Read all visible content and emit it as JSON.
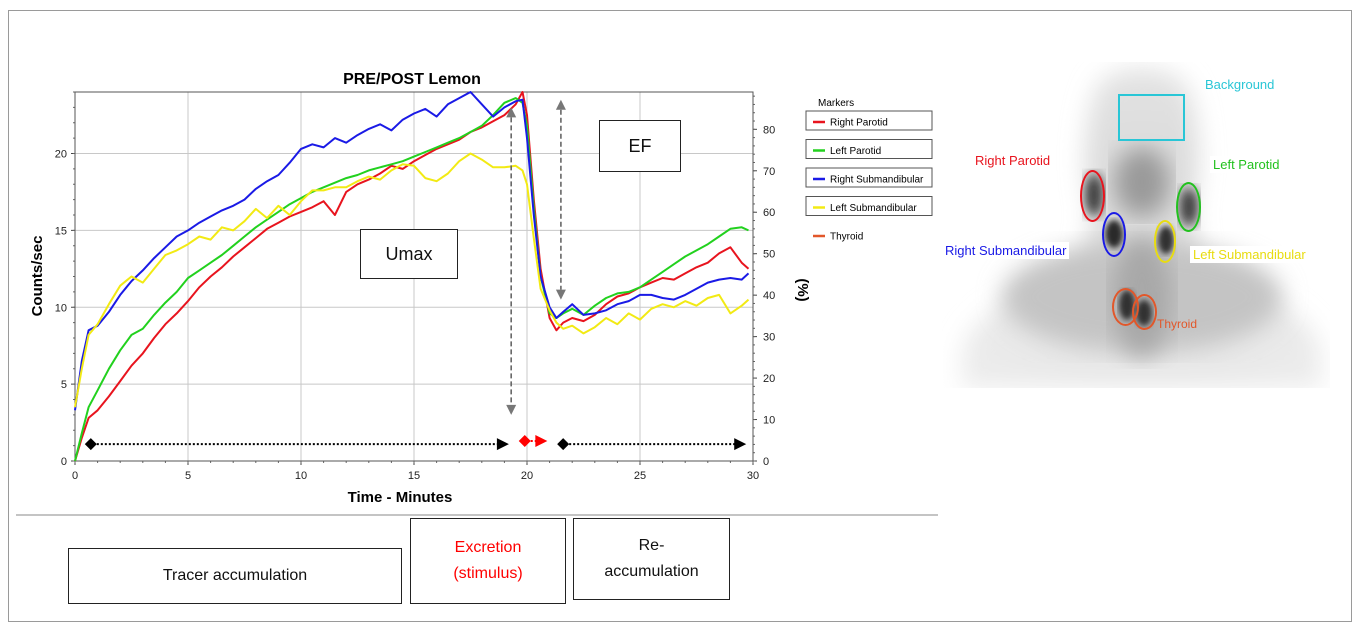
{
  "chart_data": {
    "type": "line",
    "title": "PRE/POST Lemon",
    "xlabel": "Time - Minutes",
    "ylabel": "Counts/sec",
    "y2label": "(%)",
    "xlim": [
      0,
      30
    ],
    "ylim": [
      0,
      24
    ],
    "y2lim": [
      0,
      89
    ],
    "xticks": [
      "0",
      "5",
      "10",
      "15",
      "20",
      "25",
      "30"
    ],
    "yticks": [
      "0",
      "5",
      "10",
      "15",
      "20"
    ],
    "y2ticks": [
      "0",
      "10",
      "20",
      "30",
      "40",
      "50",
      "60",
      "70",
      "80"
    ],
    "grid": true,
    "legend_title": "Markers",
    "legend_position": "right",
    "series": [
      {
        "name": "Right Parotid",
        "color": "#e8141e",
        "values": [
          [
            0,
            0
          ],
          [
            0.3,
            1.5
          ],
          [
            0.6,
            2.8
          ],
          [
            1,
            3.3
          ],
          [
            1.5,
            4.2
          ],
          [
            2,
            5.2
          ],
          [
            2.5,
            6.2
          ],
          [
            3,
            7.0
          ],
          [
            3.5,
            8.0
          ],
          [
            4,
            8.9
          ],
          [
            4.5,
            9.6
          ],
          [
            5,
            10.4
          ],
          [
            5.5,
            11.3
          ],
          [
            6,
            12.0
          ],
          [
            6.5,
            12.6
          ],
          [
            7,
            13.3
          ],
          [
            7.5,
            13.9
          ],
          [
            8,
            14.5
          ],
          [
            8.5,
            15.1
          ],
          [
            9,
            15.5
          ],
          [
            9.5,
            15.9
          ],
          [
            10,
            16.2
          ],
          [
            10.5,
            16.5
          ],
          [
            11,
            16.9
          ],
          [
            11.5,
            16.0
          ],
          [
            12,
            17.5
          ],
          [
            12.5,
            18.0
          ],
          [
            13,
            18.3
          ],
          [
            13.5,
            18.7
          ],
          [
            14,
            19.2
          ],
          [
            14.5,
            19.0
          ],
          [
            15,
            19.5
          ],
          [
            15.5,
            19.9
          ],
          [
            16,
            20.3
          ],
          [
            16.5,
            20.6
          ],
          [
            17,
            20.9
          ],
          [
            17.5,
            21.4
          ],
          [
            18,
            21.7
          ],
          [
            18.5,
            22.1
          ],
          [
            19,
            22.5
          ],
          [
            19.5,
            23.2
          ],
          [
            19.8,
            24.0
          ],
          [
            20,
            22.5
          ],
          [
            20.3,
            17.0
          ],
          [
            20.6,
            12.5
          ],
          [
            21,
            9.3
          ],
          [
            21.3,
            8.5
          ],
          [
            21.6,
            9.0
          ],
          [
            22,
            9.3
          ],
          [
            22.5,
            9.1
          ],
          [
            23,
            9.5
          ],
          [
            23.5,
            10.2
          ],
          [
            24,
            10.7
          ],
          [
            24.5,
            10.9
          ],
          [
            25,
            11.3
          ],
          [
            25.5,
            11.6
          ],
          [
            26,
            11.9
          ],
          [
            26.5,
            11.8
          ],
          [
            27,
            12.2
          ],
          [
            27.5,
            12.6
          ],
          [
            28,
            12.9
          ],
          [
            28.5,
            13.5
          ],
          [
            29,
            13.9
          ],
          [
            29.5,
            12.9
          ],
          [
            29.8,
            12.5
          ]
        ]
      },
      {
        "name": "Left Parotid",
        "color": "#22d11e",
        "values": [
          [
            0,
            0
          ],
          [
            0.3,
            1.8
          ],
          [
            0.6,
            3.5
          ],
          [
            1,
            4.6
          ],
          [
            1.5,
            6.0
          ],
          [
            2,
            7.2
          ],
          [
            2.5,
            8.2
          ],
          [
            3,
            8.6
          ],
          [
            3.5,
            9.5
          ],
          [
            4,
            10.3
          ],
          [
            4.5,
            11.0
          ],
          [
            5,
            11.9
          ],
          [
            5.5,
            12.4
          ],
          [
            6,
            12.9
          ],
          [
            6.5,
            13.4
          ],
          [
            7,
            14.0
          ],
          [
            7.5,
            14.6
          ],
          [
            8,
            15.2
          ],
          [
            8.5,
            15.7
          ],
          [
            9,
            16.2
          ],
          [
            9.5,
            16.7
          ],
          [
            10,
            17.1
          ],
          [
            10.5,
            17.5
          ],
          [
            11,
            17.8
          ],
          [
            11.5,
            18.1
          ],
          [
            12,
            18.4
          ],
          [
            12.5,
            18.6
          ],
          [
            13,
            18.9
          ],
          [
            13.5,
            19.1
          ],
          [
            14,
            19.3
          ],
          [
            14.5,
            19.5
          ],
          [
            15,
            19.8
          ],
          [
            15.5,
            20.1
          ],
          [
            16,
            20.4
          ],
          [
            16.5,
            20.7
          ],
          [
            17,
            21.0
          ],
          [
            17.5,
            21.4
          ],
          [
            18,
            21.8
          ],
          [
            18.5,
            22.5
          ],
          [
            19,
            23.3
          ],
          [
            19.5,
            23.6
          ],
          [
            19.8,
            23.3
          ],
          [
            20,
            21.8
          ],
          [
            20.3,
            16.5
          ],
          [
            20.6,
            12.0
          ],
          [
            21,
            9.6
          ],
          [
            21.3,
            9.3
          ],
          [
            21.6,
            9.6
          ],
          [
            22,
            9.9
          ],
          [
            22.5,
            9.5
          ],
          [
            23,
            10.1
          ],
          [
            23.5,
            10.6
          ],
          [
            24,
            10.9
          ],
          [
            24.5,
            11.0
          ],
          [
            25,
            11.3
          ],
          [
            25.5,
            11.8
          ],
          [
            26,
            12.3
          ],
          [
            26.5,
            12.8
          ],
          [
            27,
            13.3
          ],
          [
            27.5,
            13.7
          ],
          [
            28,
            14.1
          ],
          [
            28.5,
            14.6
          ],
          [
            29,
            15.1
          ],
          [
            29.5,
            15.2
          ],
          [
            29.8,
            15.0
          ]
        ]
      },
      {
        "name": "Right Submandibular",
        "color": "#1a1ae6",
        "values": [
          [
            0,
            3.3
          ],
          [
            0.3,
            6.5
          ],
          [
            0.6,
            8.5
          ],
          [
            1,
            8.8
          ],
          [
            1.5,
            9.7
          ],
          [
            2,
            10.8
          ],
          [
            2.5,
            11.7
          ],
          [
            3,
            12.4
          ],
          [
            3.5,
            13.2
          ],
          [
            4,
            13.9
          ],
          [
            4.5,
            14.6
          ],
          [
            5,
            15.0
          ],
          [
            5.5,
            15.5
          ],
          [
            6,
            15.9
          ],
          [
            6.5,
            16.3
          ],
          [
            7,
            16.6
          ],
          [
            7.5,
            17.0
          ],
          [
            8,
            17.7
          ],
          [
            8.5,
            18.2
          ],
          [
            9,
            18.6
          ],
          [
            9.5,
            19.4
          ],
          [
            10,
            20.3
          ],
          [
            10.5,
            20.6
          ],
          [
            11,
            20.4
          ],
          [
            11.5,
            21.0
          ],
          [
            12,
            20.7
          ],
          [
            12.5,
            21.2
          ],
          [
            13,
            21.6
          ],
          [
            13.5,
            21.9
          ],
          [
            14,
            21.5
          ],
          [
            14.5,
            22.2
          ],
          [
            15,
            22.6
          ],
          [
            15.5,
            22.9
          ],
          [
            16,
            22.4
          ],
          [
            16.5,
            23.2
          ],
          [
            17,
            23.6
          ],
          [
            17.5,
            24.0
          ],
          [
            18,
            23.2
          ],
          [
            18.5,
            22.4
          ],
          [
            19,
            23.0
          ],
          [
            19.5,
            23.4
          ],
          [
            19.8,
            23.5
          ],
          [
            20,
            21.0
          ],
          [
            20.3,
            16.0
          ],
          [
            20.6,
            12.0
          ],
          [
            21,
            10.0
          ],
          [
            21.3,
            9.3
          ],
          [
            21.6,
            9.7
          ],
          [
            22,
            10.2
          ],
          [
            22.5,
            9.5
          ],
          [
            23,
            9.6
          ],
          [
            23.5,
            9.8
          ],
          [
            24,
            10.2
          ],
          [
            24.5,
            10.4
          ],
          [
            25,
            10.8
          ],
          [
            25.5,
            10.8
          ],
          [
            26,
            10.6
          ],
          [
            26.5,
            10.5
          ],
          [
            27,
            10.8
          ],
          [
            27.5,
            11.2
          ],
          [
            28,
            11.6
          ],
          [
            28.5,
            11.8
          ],
          [
            29,
            11.9
          ],
          [
            29.5,
            11.8
          ],
          [
            29.8,
            12.2
          ]
        ]
      },
      {
        "name": "Left Submandibular",
        "color": "#f2ea14",
        "values": [
          [
            0,
            3.5
          ],
          [
            0.3,
            6.0
          ],
          [
            0.6,
            8.2
          ],
          [
            1,
            8.9
          ],
          [
            1.5,
            10.2
          ],
          [
            2,
            11.4
          ],
          [
            2.5,
            12.0
          ],
          [
            3,
            11.6
          ],
          [
            3.5,
            12.5
          ],
          [
            4,
            13.4
          ],
          [
            4.5,
            13.7
          ],
          [
            5,
            14.1
          ],
          [
            5.5,
            14.6
          ],
          [
            6,
            14.4
          ],
          [
            6.5,
            15.2
          ],
          [
            7,
            15.0
          ],
          [
            7.5,
            15.6
          ],
          [
            8,
            16.4
          ],
          [
            8.5,
            15.8
          ],
          [
            9,
            16.6
          ],
          [
            9.5,
            16.0
          ],
          [
            10,
            16.9
          ],
          [
            10.5,
            17.6
          ],
          [
            11,
            17.6
          ],
          [
            11.5,
            17.8
          ],
          [
            12,
            17.8
          ],
          [
            12.5,
            18.2
          ],
          [
            13,
            18.5
          ],
          [
            13.5,
            18.3
          ],
          [
            14,
            18.9
          ],
          [
            14.5,
            19.3
          ],
          [
            15,
            19.2
          ],
          [
            15.5,
            18.4
          ],
          [
            16,
            18.2
          ],
          [
            16.5,
            18.7
          ],
          [
            17,
            19.5
          ],
          [
            17.5,
            20.0
          ],
          [
            18,
            19.6
          ],
          [
            18.5,
            19.1
          ],
          [
            19,
            19.1
          ],
          [
            19.5,
            19.2
          ],
          [
            19.8,
            18.9
          ],
          [
            20,
            18.0
          ],
          [
            20.3,
            14.5
          ],
          [
            20.6,
            11.2
          ],
          [
            21,
            9.8
          ],
          [
            21.3,
            9.0
          ],
          [
            21.6,
            8.6
          ],
          [
            22,
            8.8
          ],
          [
            22.5,
            8.3
          ],
          [
            23,
            8.7
          ],
          [
            23.5,
            9.3
          ],
          [
            24,
            8.9
          ],
          [
            24.5,
            9.6
          ],
          [
            25,
            9.2
          ],
          [
            25.5,
            9.9
          ],
          [
            26,
            10.2
          ],
          [
            26.5,
            10.0
          ],
          [
            27,
            10.4
          ],
          [
            27.5,
            10.1
          ],
          [
            28,
            10.6
          ],
          [
            28.5,
            10.8
          ],
          [
            29,
            9.6
          ],
          [
            29.5,
            10.1
          ],
          [
            29.8,
            10.5
          ]
        ]
      },
      {
        "name": "Thyroid",
        "color": "#e2572a",
        "values": []
      }
    ],
    "phase_markers": {
      "accumulation": {
        "x_start": 0.7,
        "x_end": 19.2,
        "y": 1.1,
        "color": "#000000"
      },
      "excretion": {
        "x_start": 19.9,
        "x_end": 20.9,
        "y": 1.3,
        "color": "#ff0000"
      },
      "reaccumulation": {
        "x_start": 21.6,
        "x_end": 29.7,
        "y": 1.1,
        "color": "#000000"
      }
    },
    "annotation_arrows": {
      "umax": {
        "x": 19.3,
        "y_top": 23.0,
        "y_bottom": 3.0
      },
      "ef": {
        "x": 21.5,
        "y_top": 23.5,
        "y_bottom": 10.5
      }
    }
  },
  "annotations": {
    "umax": "Umax",
    "ef": "EF"
  },
  "phases": {
    "accumulation": "Tracer accumulation",
    "excretion_line1": "Excretion",
    "excretion_line2": "(stimulus)",
    "reaccumulation_line1": "Re-",
    "reaccumulation_line2": "accumulation",
    "excretion_color": "#ff0000"
  },
  "scan": {
    "background": "Background",
    "right_parotid": "Right Parotid",
    "left_parotid": "Left Parotid",
    "right_submandibular": "Right Submandibular",
    "left_submandibular": "Left Submandibular",
    "thyroid": "Thyroid",
    "colors": {
      "background": "#29c6d6",
      "right_parotid": "#e8141e",
      "left_parotid": "#22c11e",
      "right_submandibular": "#1a1ae6",
      "left_submandibular": "#e8dc10",
      "thyroid": "#e2572a"
    }
  }
}
